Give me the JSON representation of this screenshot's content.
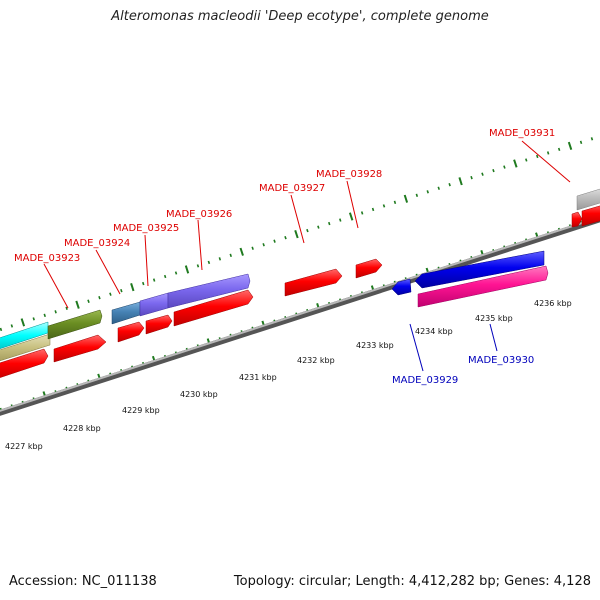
{
  "title": "Alteromonas macleodii 'Deep ecotype', complete genome",
  "footer": {
    "accession": "Accession: NC_011138",
    "summary": "Topology: circular; Length: 4,412,282 bp; Genes: 4,128"
  },
  "colors": {
    "backbone": "#8c8c8c",
    "tick": "#1f7a1f",
    "forward_label": "#dd0000",
    "reverse_label": "#0000bb",
    "cds_red": "#ff0000",
    "cds_blue": "#0000ee",
    "cds_pink": "#ff1493",
    "cds_purple": "#7b68ee",
    "cds_steel": "#4682b4",
    "cds_olive": "#6b8e23",
    "cds_cyan": "#00ffff",
    "cds_khaki": "#c8c080",
    "cds_gray": "#c0c0c0"
  },
  "scale_labels": [
    "4227 kbp",
    "4228 kbp",
    "4229 kbp",
    "4230 kbp",
    "4231 kbp",
    "4232 kbp",
    "4233 kbp",
    "4234 kbp",
    "4235 kbp",
    "4236 kbp"
  ],
  "gene_labels": {
    "forward": [
      "MADE_03923",
      "MADE_03924",
      "MADE_03925",
      "MADE_03926",
      "MADE_03927",
      "MADE_03928",
      "MADE_03931"
    ],
    "reverse": [
      "MADE_03929",
      "MADE_03930"
    ]
  }
}
